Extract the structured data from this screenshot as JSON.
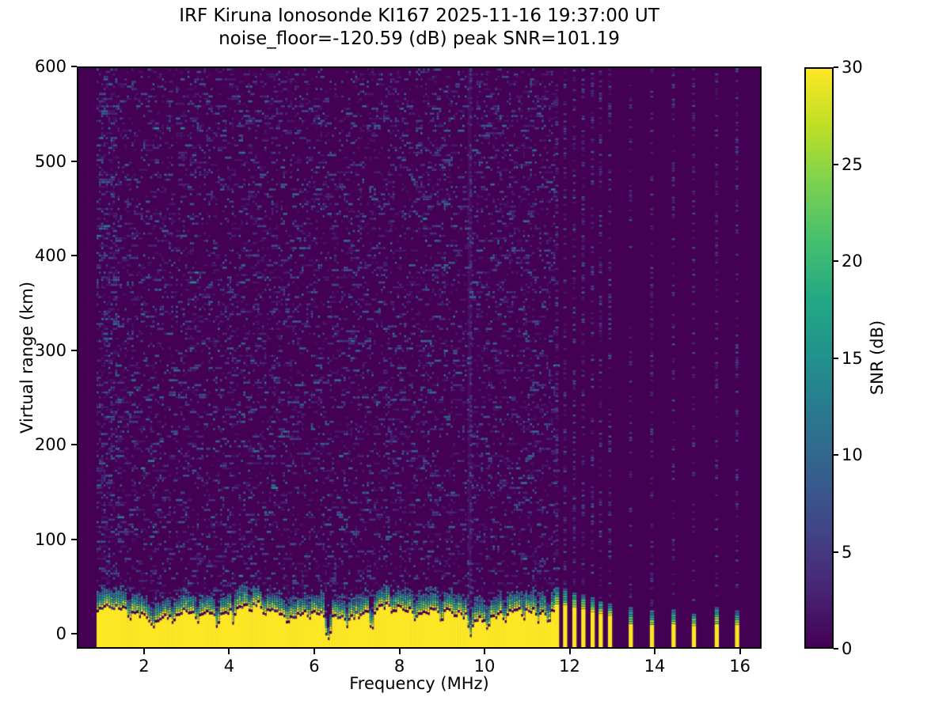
{
  "figure": {
    "title_line1": "IRF Kiruna Ionosonde KI167 2025-11-16 19:37:00  UT",
    "title_line2": "noise_floor=-120.59 (dB) peak SNR=101.19",
    "station": "IRF Kiruna Ionosonde KI167",
    "timestamp_ut": "2025-11-16 19:37:00 UT",
    "noise_floor_db": -120.59,
    "peak_snr_db": 101.19
  },
  "axes": {
    "xlabel": "Frequency (MHz)",
    "ylabel": "Virtual range (km)",
    "x_ticks": [
      2,
      4,
      6,
      8,
      10,
      12,
      14,
      16
    ],
    "y_ticks": [
      0,
      100,
      200,
      300,
      400,
      500,
      600
    ],
    "x_range": [
      0.42,
      16.51
    ],
    "y_range": [
      -15.5,
      600
    ]
  },
  "colorbar": {
    "label": "SNR (dB)",
    "ticks": [
      0,
      5,
      10,
      15,
      20,
      25,
      30
    ],
    "min": 0,
    "max": 30,
    "colormap": "viridis",
    "stops": [
      "#440154",
      "#482475",
      "#414487",
      "#355f8d",
      "#2a788e",
      "#21918c",
      "#22a884",
      "#44bf70",
      "#7ad151",
      "#bddf26",
      "#fde725"
    ]
  },
  "chart_data": {
    "type": "heatmap",
    "title": "IRF Kiruna Ionosonde KI167 2025-11-16 19:37:00 UT — noise_floor=-120.59 (dB) peak SNR=101.19",
    "xlabel": "Frequency (MHz)",
    "ylabel": "Virtual range (km)",
    "x_range_mhz": [
      0.42,
      16.51
    ],
    "y_range_km": [
      -15.5,
      600
    ],
    "snr_range_db": [
      0,
      30
    ],
    "background_color": "#440154",
    "peak_color": "#fde725",
    "features": [
      "no transmission below 0.85 MHz (solid dark column at left edge)",
      "continuous sounding 0.85-11.63 MHz: saturated yellow ground-echo band from the plot bottom up to ~25-40 km virtual range with ragged green/teal upper transition",
      "deep absorption notches in the ground-echo band near 6.3 and 7.3 MHz",
      "sparse blue speckle noise (SNR ~1-10 dB) over the whole continuous region",
      "faint vertical RFI line near 9.65 MHz",
      "discrete stepped sounding 11.6-13.0 MHz: narrow yellow bottom stripes ~0.2 MHz apart with full-height faint noise columns",
      "sparse stepped sounding 13.5-16.0 MHz: short yellow bottom stripes ~0.5 MHz apart with faint noise columns"
    ],
    "render": {
      "seed": 20251116,
      "f_step_mhz": 0.055,
      "r_step_km": 2.6,
      "tx_start_mhz": 0.85,
      "continuous_end_mhz": 11.63,
      "noise_density": 0.17,
      "noise_density_left": 0.3,
      "noise_left_cutoff_mhz": 1.35,
      "band_glow_top_base_km": 33,
      "band_yellow_gap_km": 13,
      "notches": [
        {
          "f": 1.6,
          "depth_km": 14,
          "width_mhz": 0.05
        },
        {
          "f": 2.15,
          "depth_km": 12,
          "width_mhz": 0.05
        },
        {
          "f": 2.62,
          "depth_km": 10,
          "width_mhz": 0.05
        },
        {
          "f": 3.2,
          "depth_km": 15,
          "width_mhz": 0.05
        },
        {
          "f": 3.68,
          "depth_km": 17,
          "width_mhz": 0.06
        },
        {
          "f": 4.05,
          "depth_km": 12,
          "width_mhz": 0.05
        },
        {
          "f": 4.45,
          "depth_km": 10,
          "width_mhz": 0.04
        },
        {
          "f": 4.78,
          "depth_km": 12,
          "width_mhz": 0.05
        },
        {
          "f": 5.35,
          "depth_km": 8,
          "width_mhz": 0.05
        },
        {
          "f": 5.85,
          "depth_km": 8,
          "width_mhz": 0.04
        },
        {
          "f": 6.29,
          "depth_km": 30,
          "width_mhz": 0.07
        },
        {
          "f": 6.75,
          "depth_km": 10,
          "width_mhz": 0.04
        },
        {
          "f": 7.32,
          "depth_km": 27,
          "width_mhz": 0.06
        },
        {
          "f": 7.8,
          "depth_km": 10,
          "width_mhz": 0.05
        },
        {
          "f": 8.35,
          "depth_km": 12,
          "width_mhz": 0.05
        },
        {
          "f": 8.95,
          "depth_km": 14,
          "width_mhz": 0.05
        },
        {
          "f": 9.3,
          "depth_km": 8,
          "width_mhz": 0.04
        },
        {
          "f": 9.65,
          "depth_km": 18,
          "width_mhz": 0.06
        },
        {
          "f": 10.05,
          "depth_km": 10,
          "width_mhz": 0.05
        },
        {
          "f": 10.45,
          "depth_km": 12,
          "width_mhz": 0.05
        },
        {
          "f": 10.9,
          "depth_km": 10,
          "width_mhz": 0.05
        },
        {
          "f": 11.25,
          "depth_km": 12,
          "width_mhz": 0.05
        },
        {
          "f": 11.5,
          "depth_km": 14,
          "width_mhz": 0.05
        }
      ],
      "rfi_lines": [
        {
          "f": 9.65
        }
      ],
      "stripe_width_mhz": 0.1,
      "dense_stripes": [
        {
          "f": 11.72,
          "yellow_top_km": 30,
          "glow_top_km": 47
        },
        {
          "f": 11.91,
          "yellow_top_km": 29,
          "glow_top_km": 45
        },
        {
          "f": 12.13,
          "yellow_top_km": 27,
          "glow_top_km": 42
        },
        {
          "f": 12.34,
          "yellow_top_km": 25,
          "glow_top_km": 40
        },
        {
          "f": 12.56,
          "yellow_top_km": 22,
          "glow_top_km": 36
        },
        {
          "f": 12.75,
          "yellow_top_km": 20,
          "glow_top_km": 33
        },
        {
          "f": 12.97,
          "yellow_top_km": 18,
          "glow_top_km": 30
        }
      ],
      "sparse_stripes": [
        {
          "f": 13.46,
          "yellow_top_km": 9,
          "glow_top_km": 26
        },
        {
          "f": 13.96,
          "yellow_top_km": 8,
          "glow_top_km": 22
        },
        {
          "f": 14.47,
          "yellow_top_km": 9,
          "glow_top_km": 24
        },
        {
          "f": 14.95,
          "yellow_top_km": 7,
          "glow_top_km": 20
        },
        {
          "f": 15.49,
          "yellow_top_km": 9,
          "glow_top_km": 25
        },
        {
          "f": 15.97,
          "yellow_top_km": 8,
          "glow_top_km": 23
        }
      ]
    }
  }
}
